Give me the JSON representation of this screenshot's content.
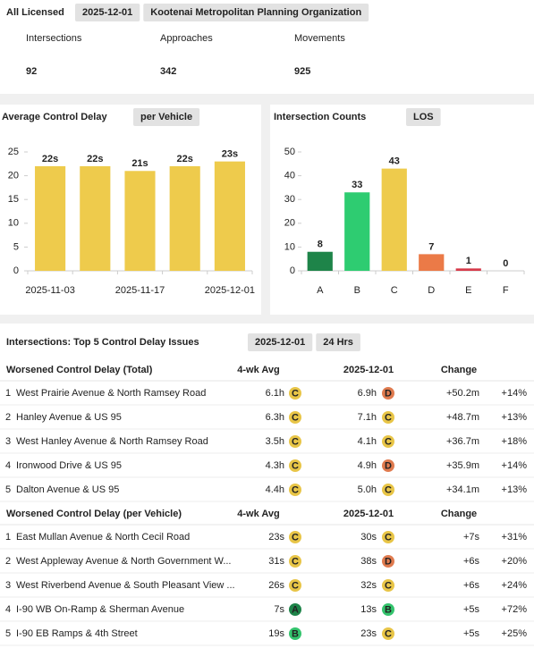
{
  "header": {
    "title": "All Licensed",
    "chips": [
      "2025-12-01",
      "Kootenai Metropolitan Planning Organization"
    ]
  },
  "kpis": [
    {
      "label": "Intersections",
      "value": 92
    },
    {
      "label": "Approaches",
      "value": 342
    },
    {
      "label": "Movements",
      "value": 925
    }
  ],
  "chart_data": [
    {
      "type": "bar",
      "title": "Average Control Delay",
      "chip": "per Vehicle",
      "categories": [
        "2025-11-03",
        null,
        "2025-11-17",
        null,
        "2025-12-01"
      ],
      "values": [
        22,
        22,
        21,
        22,
        23
      ],
      "value_labels": [
        "22s",
        "22s",
        "21s",
        "22s",
        "23s"
      ],
      "color": "#eecb4c",
      "ylim": [
        0,
        25
      ],
      "yticks": [
        0,
        5,
        10,
        15,
        20,
        25
      ]
    },
    {
      "type": "bar",
      "title": "Intersection Counts",
      "chip": "LOS",
      "categories": [
        "A",
        "B",
        "C",
        "D",
        "E",
        "F"
      ],
      "values": [
        8,
        33,
        43,
        7,
        1,
        0
      ],
      "colors": [
        "#1e8449",
        "#2ecc71",
        "#eecb4c",
        "#eb7a47",
        "#d63a4a",
        "#999999"
      ],
      "ylim": [
        0,
        50
      ],
      "yticks": [
        0,
        10,
        20,
        30,
        40,
        50
      ]
    }
  ],
  "table": {
    "title": "Intersections: Top 5 Control Delay Issues",
    "chips": [
      "2025-12-01",
      "24 Hrs"
    ],
    "grade_colors": {
      "A": "#1e8449",
      "B": "#34c46d",
      "C": "#e8c547",
      "D": "#e07b4f"
    },
    "sections": [
      {
        "headers": [
          "Worsened Control Delay (Total)",
          "4-wk Avg",
          "2025-12-01",
          "Change"
        ],
        "rows": [
          {
            "rank": 1,
            "name": "West Prairie Avenue & North Ramsey Road",
            "avg": "6.1h",
            "avg_grade": "C",
            "cur": "6.9h",
            "cur_grade": "D",
            "change": "+50.2m",
            "pct": "+14%"
          },
          {
            "rank": 2,
            "name": "Hanley Avenue & US 95",
            "avg": "6.3h",
            "avg_grade": "C",
            "cur": "7.1h",
            "cur_grade": "C",
            "change": "+48.7m",
            "pct": "+13%"
          },
          {
            "rank": 3,
            "name": "West Hanley Avenue & North Ramsey Road",
            "avg": "3.5h",
            "avg_grade": "C",
            "cur": "4.1h",
            "cur_grade": "C",
            "change": "+36.7m",
            "pct": "+18%"
          },
          {
            "rank": 4,
            "name": "Ironwood Drive & US 95",
            "avg": "4.3h",
            "avg_grade": "C",
            "cur": "4.9h",
            "cur_grade": "D",
            "change": "+35.9m",
            "pct": "+14%"
          },
          {
            "rank": 5,
            "name": "Dalton Avenue & US 95",
            "avg": "4.4h",
            "avg_grade": "C",
            "cur": "5.0h",
            "cur_grade": "C",
            "change": "+34.1m",
            "pct": "+13%"
          }
        ]
      },
      {
        "headers": [
          "Worsened Control Delay (per Vehicle)",
          "4-wk Avg",
          "2025-12-01",
          "Change"
        ],
        "rows": [
          {
            "rank": 1,
            "name": "East Mullan Avenue & North Cecil Road",
            "avg": "23s",
            "avg_grade": "C",
            "cur": "30s",
            "cur_grade": "C",
            "change": "+7s",
            "pct": "+31%"
          },
          {
            "rank": 2,
            "name": "West Appleway Avenue & North Government W...",
            "avg": "31s",
            "avg_grade": "C",
            "cur": "38s",
            "cur_grade": "D",
            "change": "+6s",
            "pct": "+20%"
          },
          {
            "rank": 3,
            "name": "West Riverbend Avenue & South Pleasant View ...",
            "avg": "26s",
            "avg_grade": "C",
            "cur": "32s",
            "cur_grade": "C",
            "change": "+6s",
            "pct": "+24%"
          },
          {
            "rank": 4,
            "name": "I-90 WB On-Ramp & Sherman Avenue",
            "avg": "7s",
            "avg_grade": "A",
            "cur": "13s",
            "cur_grade": "B",
            "change": "+5s",
            "pct": "+72%"
          },
          {
            "rank": 5,
            "name": "I-90 EB Ramps & 4th Street",
            "avg": "19s",
            "avg_grade": "B",
            "cur": "23s",
            "cur_grade": "C",
            "change": "+5s",
            "pct": "+25%"
          }
        ]
      }
    ]
  }
}
